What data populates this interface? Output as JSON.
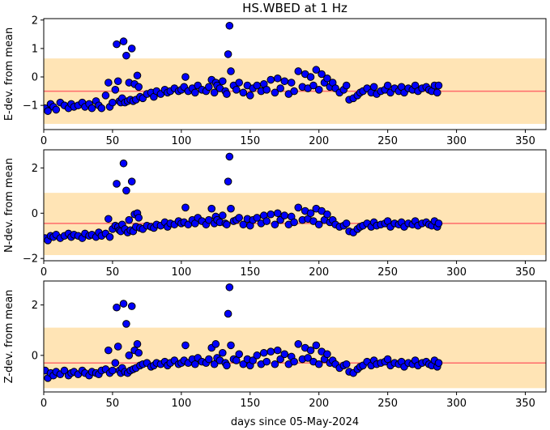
{
  "chart_data": {
    "type": "scatter",
    "title": "HS.WBED at 1 Hz",
    "xlabel": "days since 05-May-2024",
    "xlim": [
      0,
      365
    ],
    "xticks": [
      0,
      50,
      100,
      150,
      200,
      250,
      300,
      350
    ],
    "marker_color": "#0000ff",
    "marker_edge_color": "#000000",
    "band_color": "#ffe4b5",
    "mean_line_color": "#ff6b6b",
    "panels": [
      {
        "ylabel": "E-dev. from mean",
        "ylim": [
          -1.85,
          2.05
        ],
        "yticks": [
          2,
          1,
          0,
          -1
        ],
        "band": [
          -1.65,
          0.65
        ],
        "mean_line": -0.5,
        "x": [
          1,
          3,
          5,
          7,
          9,
          12,
          15,
          18,
          20,
          22,
          25,
          28,
          30,
          33,
          35,
          38,
          40,
          42,
          45,
          47,
          48,
          50,
          52,
          53,
          54,
          55,
          56,
          57,
          58,
          59,
          60,
          61,
          62,
          63,
          64,
          65,
          66,
          67,
          68,
          69,
          70,
          72,
          75,
          78,
          80,
          82,
          85,
          88,
          90,
          92,
          95,
          98,
          100,
          102,
          103,
          105,
          108,
          110,
          112,
          115,
          118,
          120,
          122,
          124,
          125,
          126,
          128,
          130,
          132,
          133,
          134,
          135,
          136,
          138,
          140,
          142,
          145,
          148,
          150,
          152,
          155,
          158,
          160,
          162,
          165,
          168,
          170,
          172,
          175,
          178,
          180,
          182,
          185,
          188,
          190,
          192,
          194,
          196,
          198,
          200,
          202,
          204,
          206,
          208,
          210,
          212,
          215,
          218,
          220,
          222,
          225,
          228,
          230,
          232,
          235,
          238,
          240,
          242,
          245,
          248,
          250,
          252,
          255,
          258,
          260,
          262,
          265,
          268,
          270,
          272,
          275,
          278,
          280,
          282,
          284,
          286,
          287
        ],
        "y": [
          -1.1,
          -1.2,
          -0.95,
          -1.05,
          -1.15,
          -0.9,
          -1.0,
          -1.1,
          -0.95,
          -1.05,
          -1.0,
          -0.9,
          -1.05,
          -0.95,
          -1.1,
          -0.85,
          -1.0,
          -1.1,
          -0.65,
          -0.2,
          -1.05,
          -0.9,
          -0.45,
          1.15,
          -0.15,
          -0.85,
          -0.9,
          -0.75,
          1.25,
          -0.9,
          0.75,
          -0.85,
          -0.2,
          -0.8,
          1.0,
          -0.85,
          -0.25,
          -0.8,
          0.05,
          -0.35,
          -0.7,
          -0.75,
          -0.6,
          -0.55,
          -0.7,
          -0.5,
          -0.6,
          -0.45,
          -0.55,
          -0.5,
          -0.4,
          -0.5,
          -0.45,
          -0.35,
          0.0,
          -0.5,
          -0.4,
          -0.55,
          -0.3,
          -0.45,
          -0.5,
          -0.35,
          -0.1,
          -0.55,
          -0.2,
          -0.3,
          -0.4,
          -0.15,
          -0.5,
          -0.6,
          0.8,
          1.8,
          0.2,
          -0.3,
          -0.45,
          -0.2,
          -0.55,
          -0.3,
          -0.65,
          -0.4,
          -0.3,
          -0.5,
          -0.25,
          -0.45,
          -0.1,
          -0.55,
          -0.05,
          -0.4,
          -0.15,
          -0.6,
          -0.2,
          -0.5,
          0.2,
          -0.35,
          0.1,
          -0.4,
          0.0,
          -0.3,
          0.25,
          -0.45,
          0.1,
          -0.2,
          -0.05,
          -0.35,
          -0.2,
          -0.4,
          -0.55,
          -0.45,
          -0.3,
          -0.8,
          -0.75,
          -0.65,
          -0.55,
          -0.5,
          -0.4,
          -0.55,
          -0.35,
          -0.6,
          -0.5,
          -0.45,
          -0.3,
          -0.55,
          -0.4,
          -0.5,
          -0.35,
          -0.55,
          -0.4,
          -0.45,
          -0.3,
          -0.5,
          -0.4,
          -0.35,
          -0.45,
          -0.5,
          -0.3,
          -0.55,
          -0.3
        ]
      },
      {
        "ylabel": "N-dev. from mean",
        "ylim": [
          -2.1,
          2.8
        ],
        "yticks": [
          2,
          0,
          -2
        ],
        "band": [
          -1.85,
          0.9
        ],
        "mean_line": -0.45,
        "x": [
          1,
          3,
          5,
          7,
          9,
          12,
          15,
          18,
          20,
          22,
          25,
          28,
          30,
          33,
          35,
          38,
          40,
          42,
          45,
          47,
          48,
          50,
          52,
          53,
          54,
          55,
          56,
          57,
          58,
          59,
          60,
          61,
          62,
          63,
          64,
          65,
          66,
          67,
          68,
          69,
          70,
          72,
          75,
          78,
          80,
          82,
          85,
          88,
          90,
          92,
          95,
          98,
          100,
          102,
          103,
          105,
          108,
          110,
          112,
          115,
          118,
          120,
          122,
          124,
          125,
          126,
          128,
          130,
          132,
          133,
          134,
          135,
          136,
          138,
          140,
          142,
          145,
          148,
          150,
          152,
          155,
          158,
          160,
          162,
          165,
          168,
          170,
          172,
          175,
          178,
          180,
          182,
          185,
          188,
          190,
          192,
          194,
          196,
          198,
          200,
          202,
          204,
          206,
          208,
          210,
          212,
          215,
          218,
          220,
          222,
          225,
          228,
          230,
          232,
          235,
          238,
          240,
          242,
          245,
          248,
          250,
          252,
          255,
          258,
          260,
          262,
          265,
          268,
          270,
          272,
          275,
          278,
          280,
          282,
          284,
          286,
          287
        ],
        "y": [
          -1.1,
          -1.2,
          -1.0,
          -1.05,
          -0.95,
          -1.1,
          -1.0,
          -0.9,
          -1.05,
          -0.95,
          -1.0,
          -1.1,
          -0.9,
          -1.0,
          -0.95,
          -1.05,
          -0.85,
          -1.0,
          -0.9,
          -0.25,
          -1.05,
          -0.7,
          -0.55,
          1.3,
          -0.6,
          -0.75,
          -0.8,
          -0.5,
          2.2,
          -0.7,
          1.0,
          -0.85,
          -0.3,
          -0.75,
          1.4,
          -0.8,
          -0.05,
          -0.6,
          0.0,
          -0.2,
          -0.65,
          -0.7,
          -0.55,
          -0.6,
          -0.65,
          -0.5,
          -0.55,
          -0.4,
          -0.6,
          -0.45,
          -0.5,
          -0.35,
          -0.45,
          -0.4,
          0.25,
          -0.5,
          -0.3,
          -0.45,
          -0.2,
          -0.35,
          -0.5,
          -0.3,
          0.2,
          -0.45,
          -0.15,
          -0.3,
          -0.4,
          -0.1,
          -0.45,
          -0.5,
          1.4,
          2.5,
          0.2,
          -0.35,
          -0.3,
          -0.2,
          -0.5,
          -0.25,
          -0.55,
          -0.3,
          -0.2,
          -0.45,
          -0.1,
          -0.35,
          -0.05,
          -0.5,
          0.0,
          -0.3,
          -0.1,
          -0.5,
          -0.15,
          -0.4,
          0.25,
          -0.3,
          0.1,
          -0.25,
          0.0,
          -0.35,
          0.2,
          -0.5,
          0.1,
          -0.3,
          -0.05,
          -0.4,
          -0.3,
          -0.5,
          -0.6,
          -0.55,
          -0.45,
          -0.8,
          -0.85,
          -0.7,
          -0.6,
          -0.55,
          -0.45,
          -0.6,
          -0.4,
          -0.55,
          -0.5,
          -0.45,
          -0.35,
          -0.6,
          -0.45,
          -0.5,
          -0.4,
          -0.6,
          -0.45,
          -0.5,
          -0.35,
          -0.55,
          -0.45,
          -0.4,
          -0.5,
          -0.55,
          -0.35,
          -0.6,
          -0.45
        ]
      },
      {
        "ylabel": "Z-dev. from mean",
        "ylim": [
          -1.45,
          2.95
        ],
        "yticks": [
          2,
          0
        ],
        "band": [
          -1.3,
          1.1
        ],
        "mean_line": -0.3,
        "x": [
          1,
          3,
          5,
          7,
          9,
          12,
          15,
          18,
          20,
          22,
          25,
          28,
          30,
          33,
          35,
          38,
          40,
          42,
          45,
          47,
          48,
          50,
          52,
          53,
          54,
          55,
          56,
          57,
          58,
          59,
          60,
          61,
          62,
          63,
          64,
          65,
          66,
          67,
          68,
          69,
          70,
          72,
          75,
          78,
          80,
          82,
          85,
          88,
          90,
          92,
          95,
          98,
          100,
          102,
          103,
          105,
          108,
          110,
          112,
          115,
          118,
          120,
          122,
          124,
          125,
          126,
          128,
          130,
          132,
          133,
          134,
          135,
          136,
          138,
          140,
          142,
          145,
          148,
          150,
          152,
          155,
          158,
          160,
          162,
          165,
          168,
          170,
          172,
          175,
          178,
          180,
          182,
          185,
          188,
          190,
          192,
          194,
          196,
          198,
          200,
          202,
          204,
          206,
          208,
          210,
          212,
          215,
          218,
          220,
          222,
          225,
          228,
          230,
          232,
          235,
          238,
          240,
          242,
          245,
          248,
          250,
          252,
          255,
          258,
          260,
          262,
          265,
          268,
          270,
          272,
          275,
          278,
          280,
          282,
          284,
          286,
          287
        ],
        "y": [
          -0.6,
          -0.9,
          -0.7,
          -0.8,
          -0.65,
          -0.75,
          -0.6,
          -0.8,
          -0.7,
          -0.65,
          -0.75,
          -0.6,
          -0.7,
          -0.8,
          -0.65,
          -0.7,
          -0.75,
          -0.6,
          -0.55,
          0.2,
          -0.7,
          -0.6,
          -0.3,
          1.9,
          0.35,
          -0.6,
          -0.7,
          -0.5,
          2.05,
          -0.65,
          1.25,
          -0.7,
          0.0,
          -0.6,
          1.95,
          -0.55,
          0.2,
          -0.5,
          0.45,
          0.1,
          -0.4,
          -0.35,
          -0.3,
          -0.45,
          -0.4,
          -0.3,
          -0.35,
          -0.25,
          -0.4,
          -0.3,
          -0.2,
          -0.35,
          -0.3,
          -0.2,
          0.4,
          -0.3,
          -0.15,
          -0.35,
          -0.1,
          -0.25,
          -0.3,
          -0.15,
          0.3,
          -0.35,
          0.45,
          -0.1,
          -0.2,
          0.1,
          -0.3,
          -0.4,
          1.65,
          2.7,
          0.4,
          -0.15,
          -0.2,
          0.05,
          -0.35,
          -0.15,
          -0.4,
          -0.2,
          0.0,
          -0.35,
          0.1,
          -0.25,
          0.15,
          -0.35,
          0.2,
          -0.15,
          0.05,
          -0.35,
          -0.05,
          -0.25,
          0.45,
          -0.15,
          0.3,
          -0.1,
          0.2,
          -0.25,
          0.4,
          -0.35,
          0.15,
          -0.15,
          0.05,
          -0.3,
          -0.2,
          -0.35,
          -0.5,
          -0.4,
          -0.35,
          -0.65,
          -0.7,
          -0.55,
          -0.45,
          -0.4,
          -0.25,
          -0.4,
          -0.2,
          -0.35,
          -0.3,
          -0.25,
          -0.15,
          -0.4,
          -0.3,
          -0.35,
          -0.25,
          -0.45,
          -0.3,
          -0.35,
          -0.2,
          -0.4,
          -0.3,
          -0.25,
          -0.35,
          -0.4,
          -0.2,
          -0.45,
          -0.3
        ]
      }
    ]
  }
}
